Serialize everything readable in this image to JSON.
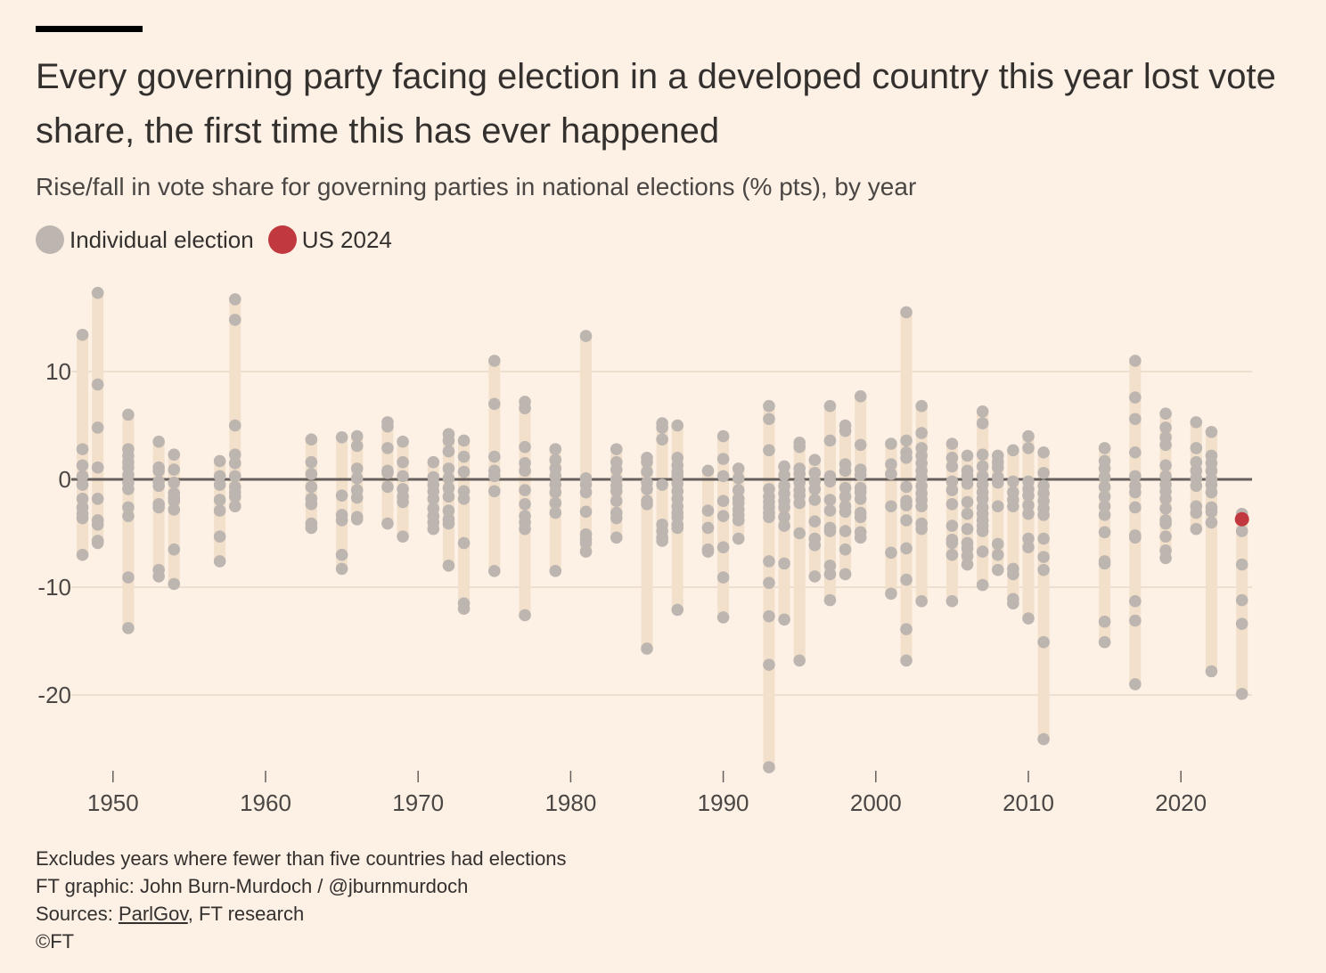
{
  "title": "Every governing party facing election in a developed country this year lost vote share, the first time this has ever happened",
  "subtitle": "Rise/fall in vote share for governing parties in national elections (% pts), by year",
  "legend": [
    {
      "label": "Individual election",
      "color": "#bdb6b0"
    },
    {
      "label": "US 2024",
      "color": "#c1393f"
    }
  ],
  "footer": {
    "note": "Excludes years where fewer than five countries had elections",
    "graphic": "FT graphic: John Burn-Murdoch / @jburnmurdoch",
    "sources_prefix": "Sources: ",
    "sources_link": "ParlGov",
    "sources_suffix": ", FT research",
    "copyright": "©FT"
  },
  "colors": {
    "background": "#fdf1e6",
    "range_bar": "#f2e0cb",
    "dot": "#bdb6b0",
    "highlight": "#c1393f",
    "zero_line": "#66605c",
    "grid": "#e8d9c8"
  },
  "chart_data": {
    "type": "scatter",
    "xlabel": "",
    "ylabel": "",
    "xlim": [
      1947.5,
      2025
    ],
    "ylim": [
      -27,
      18
    ],
    "x_ticks": [
      1950,
      1960,
      1970,
      1980,
      1990,
      2000,
      2010,
      2020
    ],
    "y_ticks": [
      10,
      0,
      -10,
      -20
    ],
    "zero_line": true,
    "grid": "horizontal",
    "series": [
      {
        "name": "Individual election",
        "points": [
          {
            "year": 1948,
            "values": [
              13.4,
              2.8,
              1.3,
              0.3,
              -0.5,
              -1.8,
              -2.6,
              -3.2,
              -3.6,
              -7.0
            ]
          },
          {
            "year": 1949,
            "values": [
              17.3,
              8.8,
              4.8,
              1.1,
              -1.8,
              -3.8,
              -4.2,
              -5.7,
              -5.9
            ]
          },
          {
            "year": 1951,
            "values": [
              6.0,
              2.8,
              2.2,
              1.6,
              1.1,
              0.4,
              -0.3,
              -0.9,
              -2.6,
              -3.4,
              -9.1,
              -13.8
            ]
          },
          {
            "year": 1953,
            "values": [
              3.5,
              1.1,
              0.8,
              -0.2,
              -0.6,
              -2.3,
              -2.6,
              -8.4,
              -9.0
            ]
          },
          {
            "year": 1954,
            "values": [
              2.3,
              0.9,
              -0.3,
              -1.3,
              -1.7,
              -2.0,
              -2.8,
              -6.5,
              -9.7
            ]
          },
          {
            "year": 1957,
            "values": [
              1.7,
              0.3,
              -0.5,
              -1.9,
              -2.9,
              -5.3,
              -7.6
            ]
          },
          {
            "year": 1958,
            "values": [
              16.7,
              14.8,
              5.0,
              2.3,
              1.5,
              0.3,
              -0.7,
              -1.2,
              -1.6,
              -2.5
            ]
          },
          {
            "year": 1963,
            "values": [
              3.7,
              1.6,
              0.5,
              -0.7,
              -1.8,
              -2.3,
              -4.1,
              -4.5
            ]
          },
          {
            "year": 1965,
            "values": [
              3.9,
              -1.5,
              -3.3,
              -3.8,
              -7.0,
              -8.3
            ]
          },
          {
            "year": 1966,
            "values": [
              4.0,
              3.1,
              1.0,
              0.1,
              -1.0,
              -1.7,
              -3.5,
              -3.7
            ]
          },
          {
            "year": 1968,
            "values": [
              5.3,
              4.9,
              2.9,
              0.8,
              0.6,
              -0.7,
              -4.1
            ]
          },
          {
            "year": 1969,
            "values": [
              3.5,
              1.6,
              0.3,
              -0.9,
              -1.6,
              -2.1,
              -5.3
            ]
          },
          {
            "year": 1971,
            "values": [
              1.6,
              0.2,
              -0.5,
              -1.1,
              -1.8,
              -2.7,
              -3.4,
              -4.0,
              -4.6
            ]
          },
          {
            "year": 1972,
            "values": [
              4.2,
              3.6,
              2.6,
              1.0,
              0.1,
              -0.8,
              -1.6,
              -2.9,
              -3.7,
              -4.1,
              -8.0
            ]
          },
          {
            "year": 1973,
            "values": [
              3.6,
              2.1,
              0.7,
              -1.1,
              -1.8,
              -5.9,
              -11.5,
              -12.0
            ]
          },
          {
            "year": 1975,
            "values": [
              11.0,
              7.0,
              2.1,
              0.8,
              0.3,
              -1.1,
              -8.5
            ]
          },
          {
            "year": 1977,
            "values": [
              7.2,
              6.6,
              3.0,
              1.5,
              0.8,
              -1.0,
              -2.3,
              -3.4,
              -4.0,
              -4.6,
              -12.6
            ]
          },
          {
            "year": 1979,
            "values": [
              2.8,
              1.8,
              1.0,
              0.3,
              -0.5,
              -1.2,
              -2.2,
              -3.1,
              -8.5
            ]
          },
          {
            "year": 1981,
            "values": [
              13.3,
              0.1,
              -0.5,
              -1.2,
              -3.0,
              -5.1,
              -5.5,
              -5.9,
              -6.7
            ]
          },
          {
            "year": 1983,
            "values": [
              2.8,
              1.6,
              0.9,
              0.0,
              -0.6,
              -1.1,
              -2.0,
              -3.1,
              -3.6,
              -5.4
            ]
          },
          {
            "year": 1985,
            "values": [
              2.0,
              1.6,
              0.7,
              -0.3,
              -0.9,
              -2.0,
              -2.3,
              -15.7
            ]
          },
          {
            "year": 1986,
            "values": [
              5.2,
              4.8,
              3.7,
              -0.5,
              -4.2,
              -4.8,
              -5.4,
              -5.7
            ]
          },
          {
            "year": 1987,
            "values": [
              5.0,
              2.0,
              1.3,
              0.7,
              0.3,
              -0.4,
              -1.1,
              -1.8,
              -2.5,
              -3.1,
              -3.5,
              -4.2,
              -4.5,
              -12.1
            ]
          },
          {
            "year": 1989,
            "values": [
              0.8,
              -2.9,
              -4.5,
              -6.5,
              -6.7
            ]
          },
          {
            "year": 1990,
            "values": [
              4.0,
              1.9,
              0.3,
              -2.0,
              -3.4,
              -6.3,
              -9.1,
              -12.8
            ]
          },
          {
            "year": 1991,
            "values": [
              1.0,
              0.1,
              -1.0,
              -1.8,
              -2.2,
              -2.8,
              -3.3,
              -3.8,
              -5.5
            ]
          },
          {
            "year": 1993,
            "values": [
              6.8,
              5.6,
              2.7,
              -0.9,
              -1.6,
              -2.1,
              -2.6,
              -3.1,
              -3.5,
              -7.6,
              -9.6,
              -12.7,
              -17.2,
              -26.7
            ]
          },
          {
            "year": 1994,
            "values": [
              1.2,
              0.4,
              -0.6,
              -1.3,
              -2.0,
              -2.6,
              -3.5,
              -4.3,
              -7.8,
              -13.0
            ]
          },
          {
            "year": 1995,
            "values": [
              3.4,
              3.0,
              1.0,
              0.5,
              -0.3,
              -1.0,
              -1.5,
              -2.2,
              -5.0,
              -16.8
            ]
          },
          {
            "year": 1996,
            "values": [
              1.8,
              0.6,
              -0.2,
              -0.9,
              -1.9,
              -3.9,
              -5.5,
              -6.1,
              -9.0
            ]
          },
          {
            "year": 1997,
            "values": [
              6.8,
              3.6,
              0.3,
              -0.2,
              -1.9,
              -2.9,
              -4.5,
              -4.8,
              -8.0,
              -8.8,
              -11.2
            ]
          },
          {
            "year": 1998,
            "values": [
              5.0,
              4.5,
              1.4,
              0.8,
              -0.8,
              -1.6,
              -2.5,
              -3.0,
              -4.8,
              -6.5,
              -8.8
            ]
          },
          {
            "year": 1999,
            "values": [
              7.7,
              3.2,
              0.9,
              0.4,
              -0.8,
              -1.2,
              -1.8,
              -3.1,
              -3.5,
              -4.9,
              -5.4
            ]
          },
          {
            "year": 2001,
            "values": [
              3.3,
              1.4,
              0.5,
              -2.5,
              -6.8,
              -10.6
            ]
          },
          {
            "year": 2002,
            "values": [
              15.5,
              3.6,
              2.5,
              2.0,
              -0.7,
              -2.0,
              -2.4,
              -3.8,
              -6.4,
              -9.3,
              -13.9,
              -16.8
            ]
          },
          {
            "year": 2003,
            "values": [
              6.8,
              4.3,
              2.9,
              2.2,
              1.5,
              0.8,
              0.2,
              -0.6,
              -1.3,
              -1.9,
              -2.5,
              -4.1,
              -4.6,
              -11.3
            ]
          },
          {
            "year": 2005,
            "values": [
              3.3,
              2.0,
              1.2,
              -0.2,
              -1.0,
              -2.3,
              -4.3,
              -5.6,
              -5.9,
              -7.0,
              -11.3
            ]
          },
          {
            "year": 2006,
            "values": [
              2.2,
              0.8,
              0.3,
              -0.4,
              -2.1,
              -3.2,
              -4.6,
              -5.9,
              -6.4,
              -7.1,
              -7.9
            ]
          },
          {
            "year": 2007,
            "values": [
              6.3,
              5.2,
              2.3,
              1.2,
              0.3,
              -0.5,
              -1.2,
              -1.8,
              -2.6,
              -3.2,
              -3.8,
              -4.3,
              -4.8,
              -6.7,
              -9.8
            ]
          },
          {
            "year": 2008,
            "values": [
              2.2,
              1.6,
              1.1,
              0.2,
              -0.3,
              -2.5,
              -6.0,
              -7.0,
              -8.4
            ]
          },
          {
            "year": 2009,
            "values": [
              2.7,
              -0.2,
              -1.2,
              -1.9,
              -2.5,
              -8.3,
              -8.8,
              -11.1,
              -11.5
            ]
          },
          {
            "year": 2010,
            "values": [
              4.0,
              2.9,
              -0.2,
              -0.9,
              -1.5,
              -2.4,
              -3.2,
              -5.5,
              -6.3,
              -12.9
            ]
          },
          {
            "year": 2011,
            "values": [
              2.5,
              0.6,
              -0.6,
              -1.3,
              -2.0,
              -2.7,
              -3.3,
              -5.5,
              -7.2,
              -8.4,
              -15.1,
              -24.1
            ]
          },
          {
            "year": 2015,
            "values": [
              2.9,
              1.7,
              1.0,
              0.2,
              -0.7,
              -1.6,
              -2.5,
              -3.3,
              -4.9,
              -7.6,
              -7.8,
              -13.2,
              -15.1
            ]
          },
          {
            "year": 2017,
            "values": [
              11.0,
              7.6,
              5.6,
              2.5,
              0.3,
              -0.6,
              -1.2,
              -2.6,
              -5.2,
              -5.4,
              -11.3,
              -13.1,
              -19.0
            ]
          },
          {
            "year": 2019,
            "values": [
              6.1,
              4.8,
              3.9,
              3.2,
              1.3,
              0.3,
              -0.5,
              -1.1,
              -1.8,
              -2.7,
              -3.8,
              -4.1,
              -5.3,
              -6.6,
              -7.3
            ]
          },
          {
            "year": 2021,
            "values": [
              5.3,
              2.9,
              1.6,
              0.8,
              0.1,
              -0.6,
              -2.5,
              -3.1,
              -4.6
            ]
          },
          {
            "year": 2022,
            "values": [
              4.4,
              2.2,
              1.5,
              0.8,
              0.0,
              -0.5,
              -1.2,
              -2.6,
              -3.0,
              -4.0,
              -17.8
            ]
          },
          {
            "year": 2024,
            "values": [
              -3.2,
              -4.8,
              -7.9,
              -11.2,
              -13.4,
              -19.9
            ]
          }
        ]
      },
      {
        "name": "US 2024",
        "points": [
          {
            "year": 2024,
            "values": [
              -3.7
            ]
          }
        ]
      }
    ]
  }
}
